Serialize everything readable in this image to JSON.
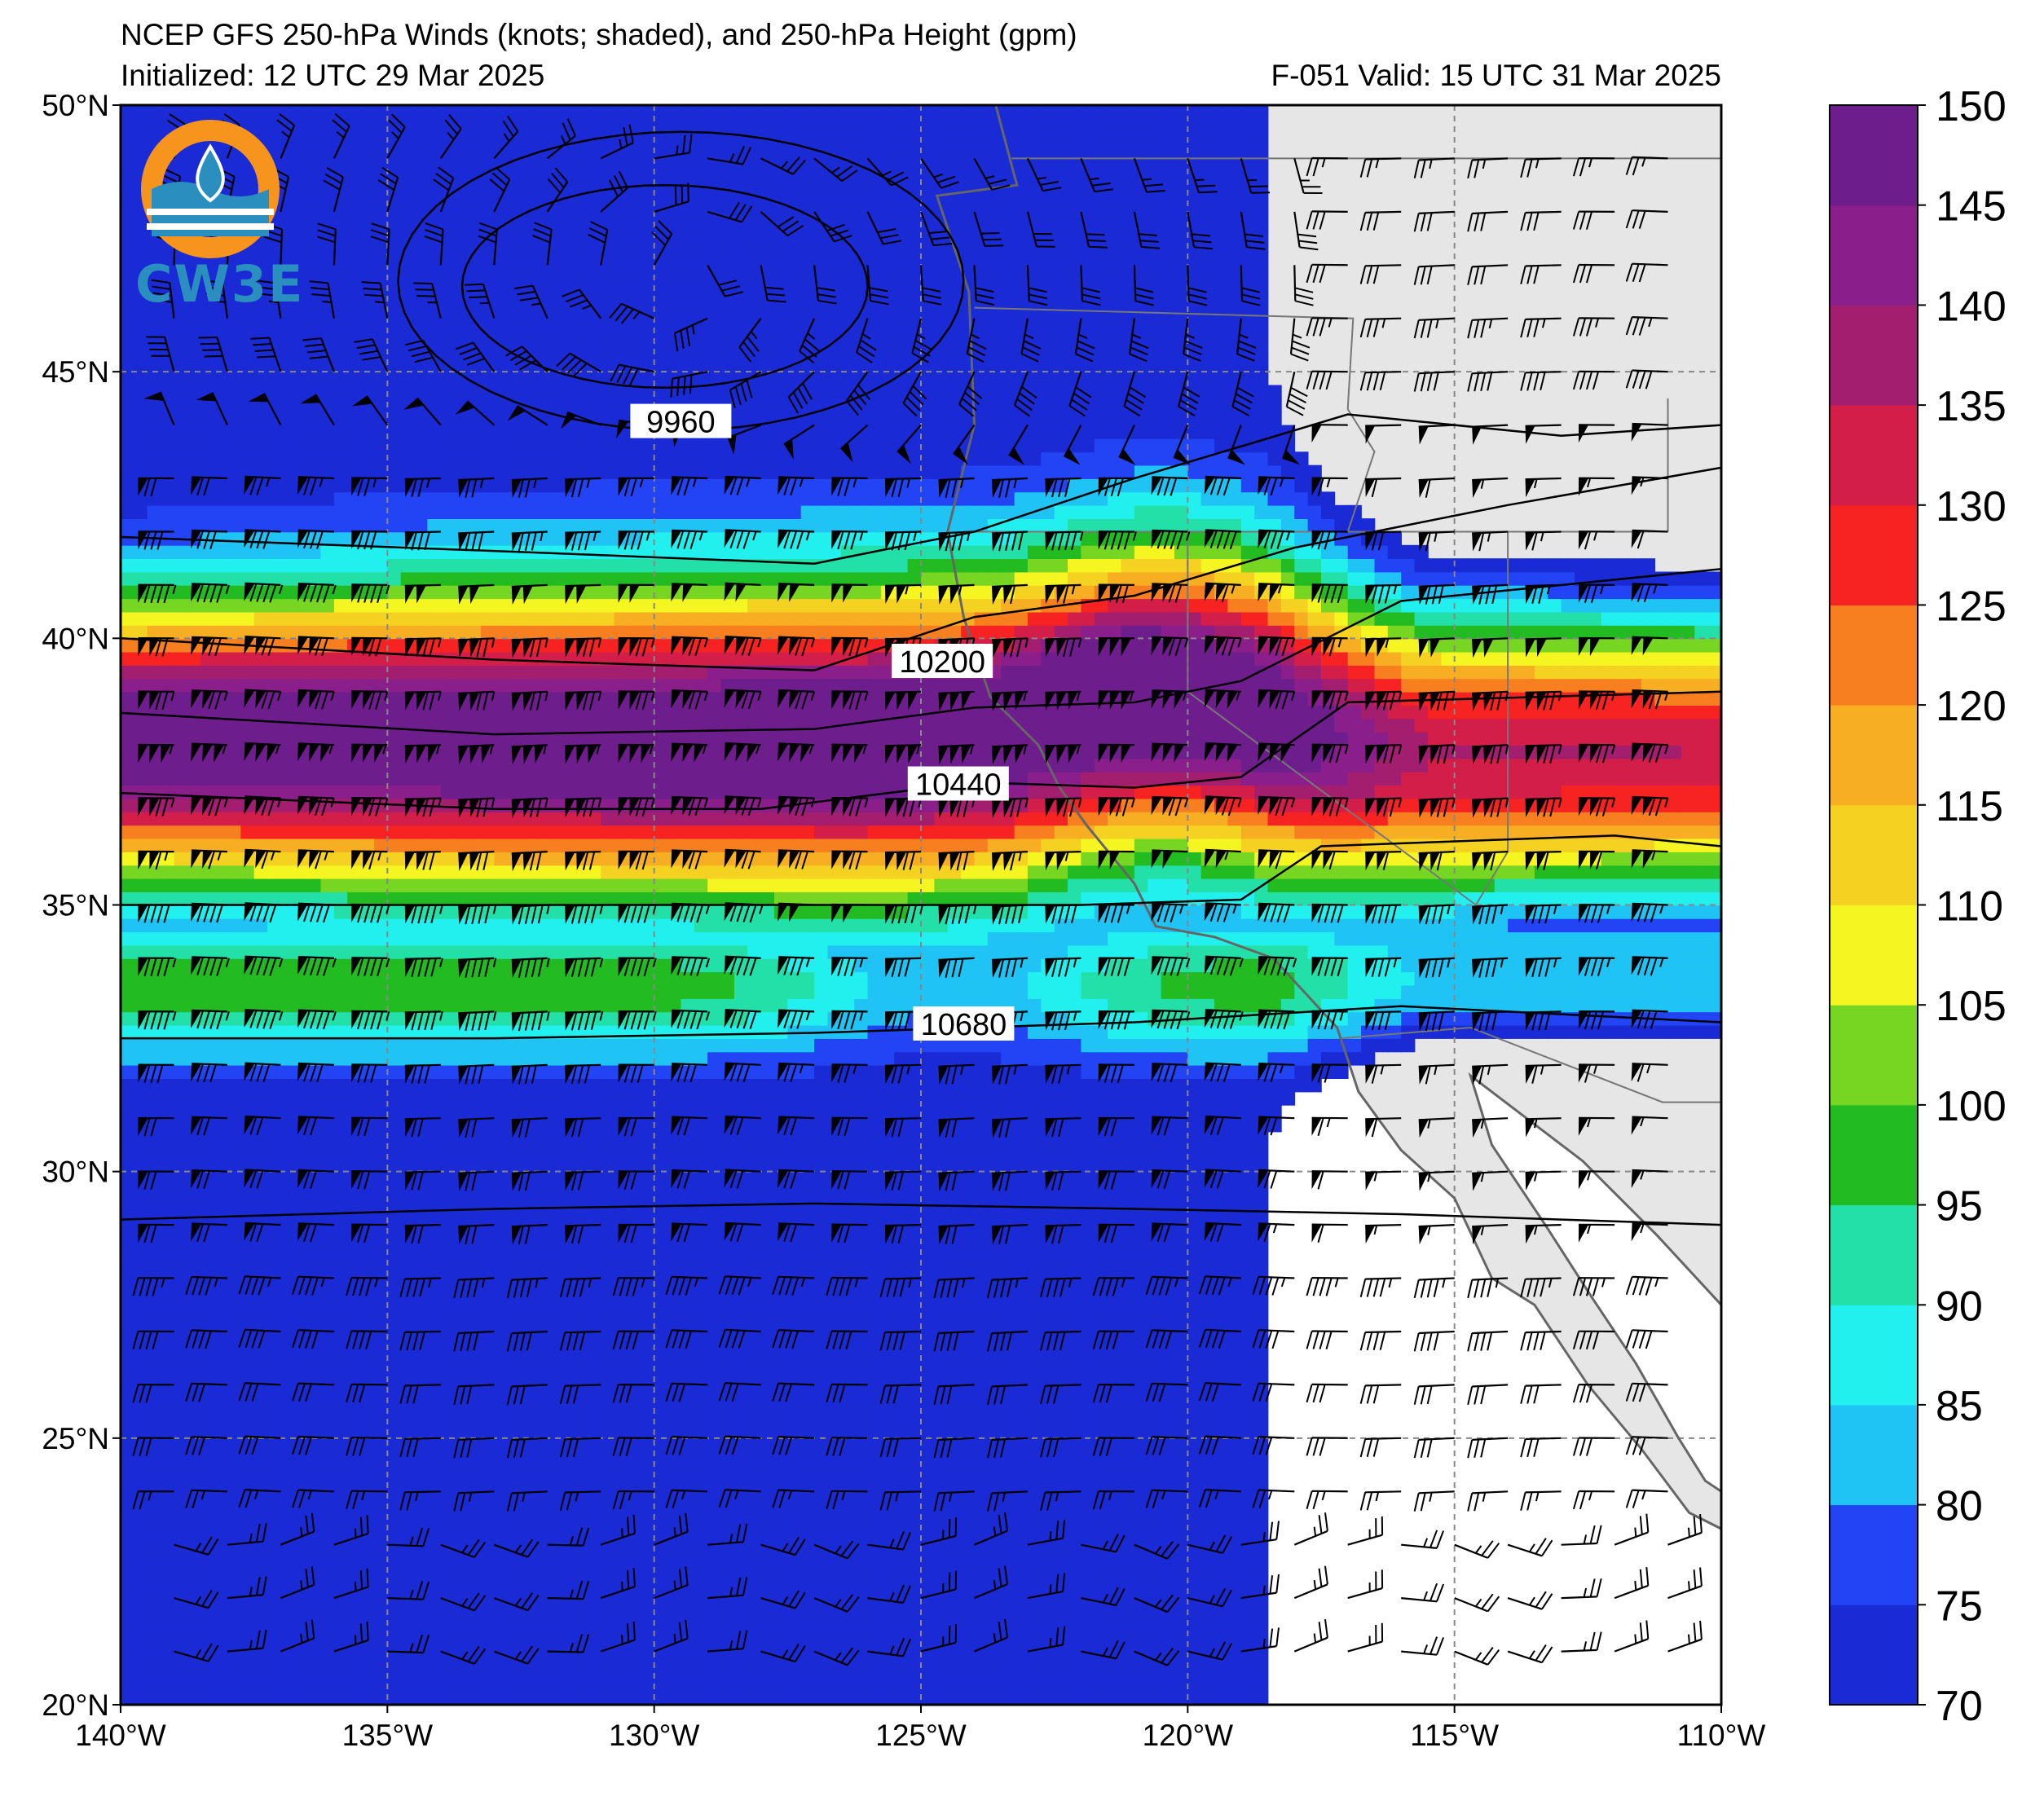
{
  "title": {
    "line1": "NCEP GFS 250-hPa Winds (knots; shaded), and 250-hPa Height (gpm)",
    "line2": "Initialized: 12 UTC 29 Mar 2025",
    "valid": "F-051  Valid: 15 UTC 31 Mar 2025"
  },
  "logo": {
    "text": "CW3E",
    "colors": {
      "ring": "#f7941d",
      "waves": "#2a8fbf"
    }
  },
  "map": {
    "lon_range": [
      -140,
      -110
    ],
    "lat_range": [
      20,
      50
    ],
    "lon_ticks": [
      {
        "value": -140,
        "label": "140°W"
      },
      {
        "value": -135,
        "label": "135°W"
      },
      {
        "value": -130,
        "label": "130°W"
      },
      {
        "value": -125,
        "label": "125°W"
      },
      {
        "value": -120,
        "label": "120°W"
      },
      {
        "value": -115,
        "label": "115°W"
      },
      {
        "value": -110,
        "label": "110°W"
      }
    ],
    "lat_ticks": [
      {
        "value": 50,
        "label": "50°N"
      },
      {
        "value": 45,
        "label": "45°N"
      },
      {
        "value": 40,
        "label": "40°N"
      },
      {
        "value": 35,
        "label": "35°N"
      },
      {
        "value": 30,
        "label": "30°N"
      },
      {
        "value": 25,
        "label": "25°N"
      },
      {
        "value": 20,
        "label": "20°N"
      }
    ],
    "land_color": "#e6e6e6",
    "coast_color": "#666666"
  },
  "contours": [
    {
      "label": "9960",
      "label_lon": -129.5,
      "label_lat": 44.0
    },
    {
      "label": "10200",
      "label_lon": -124.6,
      "label_lat": 39.5
    },
    {
      "label": "10440",
      "label_lon": -124.3,
      "label_lat": 37.2
    },
    {
      "label": "10680",
      "label_lon": -124.2,
      "label_lat": 32.7
    }
  ],
  "colorbar": {
    "levels": [
      70,
      75,
      80,
      85,
      90,
      95,
      100,
      105,
      110,
      115,
      120,
      125,
      130,
      135,
      140,
      145,
      150
    ],
    "labels": [
      "70",
      "75",
      "80",
      "85",
      "90",
      "95",
      "100",
      "105",
      "110",
      "115",
      "120",
      "125",
      "130",
      "135",
      "140",
      "145",
      "150"
    ],
    "colors": [
      "#1a2bd6",
      "#2244f5",
      "#1fc4f5",
      "#22f0ee",
      "#22e0a8",
      "#22bb22",
      "#77d622",
      "#f5f522",
      "#f5d222",
      "#f7ae22",
      "#f77f1f",
      "#f72222",
      "#d41e4a",
      "#a31e6e",
      "#8a1e8a",
      "#6e1e8c"
    ]
  }
}
